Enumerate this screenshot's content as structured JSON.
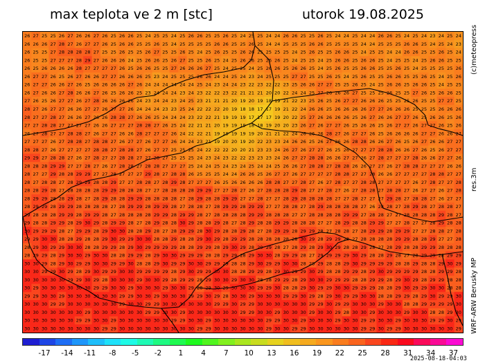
{
  "header": {
    "title": "max teplota ve 2 m [stc]",
    "date": "utorok 19.08.2025"
  },
  "side_labels": {
    "credit": "(c)meteopress",
    "resolution": "res.3m",
    "model": "WRF-ARW Berusky MP"
  },
  "map": {
    "variable": "max temperature at 2 m",
    "unit": "°C",
    "value_range": [
      18,
      30
    ],
    "region_outline": "Slovakia border and administrative boundaries"
  },
  "colorbar": {
    "colors": [
      "#1e1ed2",
      "#1e46e6",
      "#1e6ef5",
      "#1e96fa",
      "#1ebefa",
      "#1ee1fa",
      "#1efae6",
      "#1efab4",
      "#1efa82",
      "#1efa50",
      "#1efa1e",
      "#50f51e",
      "#82f01e",
      "#aae61e",
      "#c8dc1e",
      "#e6d21e",
      "#f0be1e",
      "#f5aa1e",
      "#fa961e",
      "#fa7d1e",
      "#fa641e",
      "#fa461e",
      "#fa2814",
      "#fa0a1e",
      "#fa0a5a",
      "#fa0a96",
      "#fa0ad2"
    ],
    "tick_labels": [
      "-17",
      "-14",
      "-11",
      "-8",
      "-5",
      "-2",
      "1",
      "4",
      "7",
      "10",
      "13",
      "16",
      "19",
      "22",
      "25",
      "28",
      "31",
      "34",
      "37"
    ]
  },
  "footer": {
    "timestamp": "2025-08-18-04:03"
  }
}
